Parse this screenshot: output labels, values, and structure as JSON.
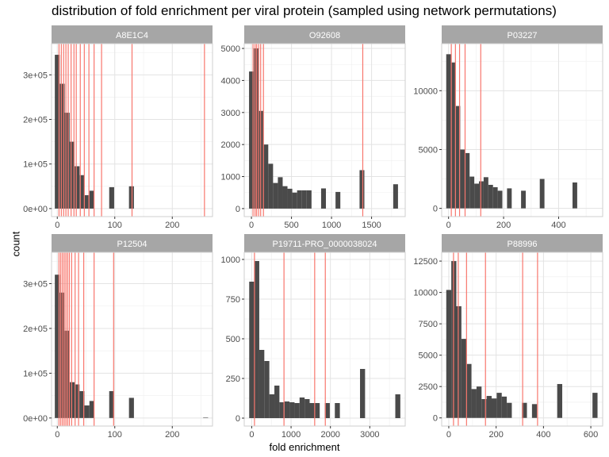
{
  "title": "distribution of fold enrichment per viral protein (sampled using network permutations)",
  "xlabel": "fold enrichment",
  "ylabel": "count",
  "colors": {
    "bar": "#4a4a4a",
    "vline": "#f8766d",
    "strip": "#a6a6a6",
    "grid_major": "#e3e3e3",
    "grid_minor": "#f2f2f2",
    "panel_border": "#cfcfcf"
  },
  "chart_data": [
    {
      "type": "bar",
      "panel": "A8E1C4",
      "xlim": [
        -10,
        270
      ],
      "ylim": [
        -18000,
        370000
      ],
      "x_ticks": [
        0,
        100,
        200
      ],
      "x_tick_labels": [
        "0",
        "100",
        "200"
      ],
      "y_ticks": [
        0,
        100000,
        200000,
        300000
      ],
      "y_tick_labels": [
        "0e+00",
        "1e+05",
        "2e+05",
        "3e+05"
      ],
      "bin_width": 8.6,
      "bins_x": [
        0,
        8.6,
        17.2,
        25.8,
        34.4,
        43,
        51.6,
        60.2,
        94.6,
        129
      ],
      "bins_y": [
        345000,
        280000,
        215000,
        150000,
        95000,
        75000,
        30000,
        40000,
        48000,
        50000
      ],
      "vlines": [
        3,
        7,
        11,
        15,
        19,
        24,
        29,
        33,
        40,
        47,
        55,
        64,
        77,
        130,
        256
      ]
    },
    {
      "type": "bar",
      "panel": "O92608",
      "xlim": [
        -90,
        1920
      ],
      "ylim": [
        -250,
        5150
      ],
      "x_ticks": [
        0,
        500,
        1000,
        1500
      ],
      "x_tick_labels": [
        "0",
        "500",
        "1000",
        "1500"
      ],
      "y_ticks": [
        0,
        1000,
        2000,
        3000,
        4000,
        5000
      ],
      "y_tick_labels": [
        "0",
        "1000",
        "2000",
        "3000",
        "4000",
        "5000"
      ],
      "bin_width": 60,
      "bins_x": [
        0,
        60,
        120,
        180,
        240,
        300,
        360,
        420,
        480,
        540,
        600,
        660,
        720,
        900,
        1080,
        1380,
        1800
      ],
      "bins_y": [
        4280,
        5000,
        3050,
        2000,
        1400,
        800,
        980,
        700,
        620,
        500,
        570,
        570,
        570,
        630,
        520,
        1200,
        760
      ],
      "vlines": [
        20,
        45,
        65,
        90,
        115,
        150,
        1390
      ]
    },
    {
      "type": "bar",
      "panel": "P03227",
      "xlim": [
        -25,
        560
      ],
      "ylim": [
        -700,
        14000
      ],
      "x_ticks": [
        0,
        200,
        400
      ],
      "x_tick_labels": [
        "0",
        "200",
        "400"
      ],
      "y_ticks": [
        0,
        5000,
        10000
      ],
      "y_tick_labels": [
        "0",
        "5000",
        "10000"
      ],
      "bin_width": 17,
      "bins_x": [
        0,
        17,
        34,
        51,
        68,
        85,
        102,
        119,
        136,
        153,
        170,
        187,
        221,
        272,
        340,
        459
      ],
      "bins_y": [
        13100,
        12400,
        8700,
        5000,
        4700,
        2700,
        2100,
        2300,
        2650,
        2000,
        1800,
        1500,
        1700,
        1500,
        2500,
        2200
      ],
      "vlines": [
        10,
        25,
        40,
        60,
        117
      ]
    },
    {
      "type": "bar",
      "panel": "P12504",
      "xlim": [
        -10,
        270
      ],
      "ylim": [
        -18000,
        370000
      ],
      "x_ticks": [
        0,
        100,
        200
      ],
      "x_tick_labels": [
        "0",
        "100",
        "200"
      ],
      "y_ticks": [
        0,
        100000,
        200000,
        300000
      ],
      "y_tick_labels": [
        "0e+00",
        "1e+05",
        "2e+05",
        "3e+05"
      ],
      "bin_width": 8.6,
      "bins_x": [
        0,
        8.6,
        17.2,
        25.8,
        34.4,
        43,
        51.6,
        60.2,
        94.6,
        129,
        258
      ],
      "bins_y": [
        320000,
        280000,
        195000,
        80000,
        75000,
        60000,
        28000,
        38000,
        60000,
        45000,
        1000
      ],
      "vlines": [
        3,
        6,
        9,
        12,
        15,
        18,
        21,
        25,
        31,
        37,
        46,
        64,
        98
      ]
    },
    {
      "type": "bar",
      "panel": "P19711-PRO_0000038024",
      "xlim": [
        -190,
        3900
      ],
      "ylim": [
        -50,
        1045
      ],
      "x_ticks": [
        0,
        1000,
        2000,
        3000
      ],
      "x_tick_labels": [
        "0",
        "1000",
        "2000",
        "3000"
      ],
      "y_ticks": [
        0,
        250,
        500,
        750,
        1000
      ],
      "y_tick_labels": [
        "0",
        "250",
        "500",
        "750",
        "1000"
      ],
      "bin_width": 128,
      "bins_x": [
        0,
        128,
        256,
        384,
        512,
        640,
        768,
        896,
        1024,
        1152,
        1280,
        1408,
        1536,
        1664,
        1920,
        2176,
        2816,
        3712
      ],
      "bins_y": [
        860,
        990,
        430,
        360,
        150,
        205,
        100,
        105,
        100,
        95,
        130,
        120,
        95,
        95,
        95,
        95,
        310,
        150
      ],
      "vlines": [
        70,
        820,
        1600,
        1870
      ]
    },
    {
      "type": "bar",
      "panel": "P88996",
      "xlim": [
        -30,
        650
      ],
      "ylim": [
        -650,
        13200
      ],
      "x_ticks": [
        0,
        200,
        400,
        600
      ],
      "x_tick_labels": [
        "0",
        "200",
        "400",
        "600"
      ],
      "y_ticks": [
        0,
        2500,
        5000,
        7500,
        10000,
        12500
      ],
      "y_tick_labels": [
        "0",
        "2500",
        "5000",
        "7500",
        "10000",
        "12500"
      ],
      "bin_width": 21.3,
      "bins_x": [
        0,
        21.3,
        42.6,
        63.9,
        85.2,
        106.5,
        127.8,
        149.1,
        170.4,
        191.7,
        213,
        234.3,
        255.6,
        319.5,
        362.1,
        468.6,
        617.7
      ],
      "bins_y": [
        10200,
        12500,
        8900,
        6300,
        4300,
        2300,
        2500,
        1500,
        1750,
        1550,
        2000,
        1700,
        1200,
        1200,
        1100,
        2700,
        2000
      ],
      "vlines": [
        20,
        40,
        75,
        155,
        312,
        375
      ]
    }
  ]
}
